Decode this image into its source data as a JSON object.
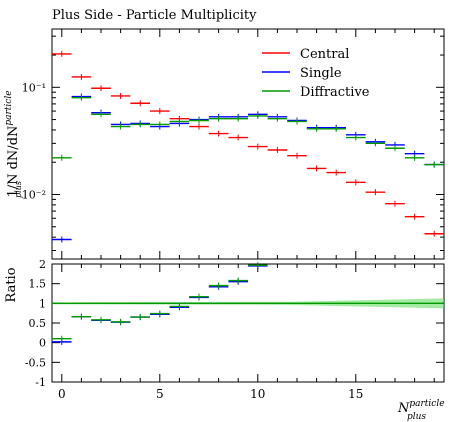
{
  "title": "Plus Side - Particle Multiplicity",
  "ylabel_main": "1/N dN/dN_plus^particle",
  "ylabel_ratio": "Ratio",
  "xlabel": "N_plus^particle",
  "colors": {
    "central": "#ff0000",
    "single": "#0000ff",
    "diffractive": "#009900"
  },
  "chart_data": [
    {
      "type": "line",
      "panel": "main",
      "title": "Plus Side - Particle Multiplicity",
      "ylabel": "1/N dN/dN_plus^particle",
      "xlim": [
        -0.5,
        19.5
      ],
      "ylim": [
        0.0025,
        0.35
      ],
      "log_y": true,
      "y_ticks": [
        {
          "v": 0.1,
          "label": "10⁻¹"
        },
        {
          "v": 0.01,
          "label": "10⁻²"
        }
      ],
      "legend": "top-right",
      "grid": false,
      "x": [
        0,
        1,
        2,
        3,
        4,
        5,
        6,
        7,
        8,
        9,
        10,
        11,
        12,
        13,
        14,
        15,
        16,
        17,
        18,
        19
      ],
      "series": [
        {
          "name": "Central",
          "color": "#ff0000",
          "values": [
            0.205,
            0.125,
            0.098,
            0.083,
            0.071,
            0.06,
            0.051,
            0.043,
            0.037,
            0.034,
            0.028,
            0.026,
            0.023,
            0.0175,
            0.016,
            0.013,
            0.0105,
            0.0082,
            0.0062,
            0.0043
          ]
        },
        {
          "name": "Single",
          "color": "#0000ff",
          "values": [
            0.0038,
            0.082,
            0.058,
            0.045,
            0.046,
            0.043,
            0.046,
            0.05,
            0.053,
            0.053,
            0.056,
            0.053,
            0.049,
            0.042,
            0.042,
            0.036,
            0.031,
            0.029,
            0.024,
            0.019
          ]
        },
        {
          "name": "Diffractive",
          "color": "#009900",
          "values": [
            0.022,
            0.08,
            0.056,
            0.043,
            0.045,
            0.045,
            0.048,
            0.049,
            0.051,
            0.051,
            0.054,
            0.051,
            0.048,
            0.041,
            0.041,
            0.034,
            0.03,
            0.027,
            0.022,
            0.019
          ]
        }
      ]
    },
    {
      "type": "line",
      "panel": "ratio",
      "ylabel": "Ratio",
      "xlabel": "N_plus^particle",
      "xlim": [
        -0.5,
        19.5
      ],
      "ylim": [
        -1,
        2
      ],
      "x_ticks": [
        0,
        5,
        10,
        15
      ],
      "y_ticks": [
        -1,
        -0.5,
        0,
        0.5,
        1,
        1.5,
        2
      ],
      "x": [
        0,
        1,
        2,
        3,
        4,
        5,
        6,
        7,
        8,
        9,
        10
      ],
      "series": [
        {
          "name": "Single",
          "color": "#0000ff",
          "values": [
            0.02,
            0.66,
            0.57,
            0.52,
            0.65,
            0.72,
            0.9,
            1.15,
            1.42,
            1.55,
            1.95
          ]
        },
        {
          "name": "Diffractive",
          "color": "#009900",
          "values": [
            0.1,
            0.66,
            0.58,
            0.53,
            0.65,
            0.74,
            0.92,
            1.17,
            1.45,
            1.58,
            1.97
          ]
        }
      ],
      "reference_band": {
        "name": "Central",
        "value": 1.0,
        "color": "#009900"
      }
    }
  ]
}
